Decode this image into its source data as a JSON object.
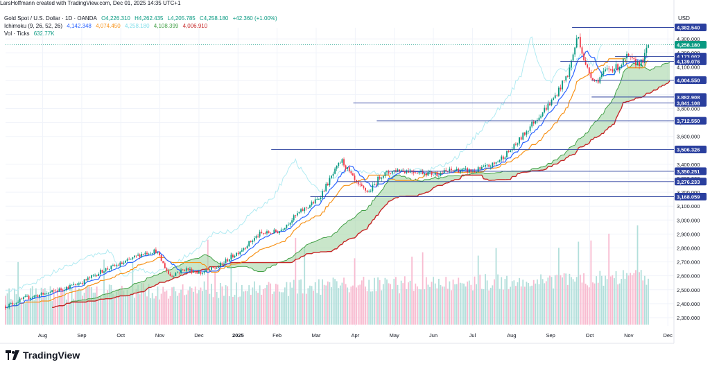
{
  "creator": "LarsHoffmann created with TradingView.com, Dec 01, 2025 14:35 UTC+1",
  "symbol": {
    "name": "Gold Spot / U.S. Dollar · 1D · OANDA",
    "open": "O4,226.310",
    "high": "H4,262.435",
    "low": "L4,205.785",
    "close": "C4,258.180",
    "change": "+42.360 (+1.00%)"
  },
  "ichimoku": {
    "label": "Ichimoku (9, 26, 52, 26)",
    "conversion": "4,142.348",
    "base": "4,074.450",
    "lagging": "4,258.180",
    "lead1": "4,108.399",
    "lead2": "4,006.910"
  },
  "volume": {
    "label": "Vol · Ticks",
    "value": "632.77K"
  },
  "currency": "USD",
  "footer": {
    "brand": "TradingView"
  },
  "colors": {
    "up": "#089981",
    "down": "#f23645",
    "conversion": "#2962ff",
    "base": "#f7931a",
    "lagging": "#b2ebf2",
    "lead1": "#43a047",
    "lead2": "#c62828",
    "cloud": "#a5d6a7",
    "hline": "#2a3f9e",
    "vol_up": "#b2dfdb",
    "vol_down": "#f8bbd0",
    "grid": "#f0f3fa",
    "text": "#131722"
  },
  "chart_data": {
    "type": "candlestick",
    "title": "Gold Spot / U.S. Dollar · 1D · OANDA",
    "x_range": [
      "Jul 2024",
      "Dec 2025"
    ],
    "x_ticks": [
      "Aug",
      "Sep",
      "Oct",
      "Nov",
      "Dec",
      "2025",
      "Feb",
      "Mar",
      "Apr",
      "May",
      "Jun",
      "Jul",
      "Aug",
      "Sep",
      "Oct",
      "Nov",
      "Dec"
    ],
    "ylim": [
      2240,
      4380
    ],
    "y_ticks": [
      2300,
      2400,
      2500,
      2600,
      2700,
      2800,
      2900,
      3000,
      3100,
      3200,
      3300,
      3400,
      3600,
      3700,
      3800,
      3900,
      4000,
      4100,
      4200,
      4300
    ],
    "y_tick_labels": [
      "2,300.000",
      "2,400.000",
      "2,500.000",
      "2,600.000",
      "2,700.000",
      "2,800.000",
      "2,900.000",
      "3,000.000",
      "3,100.000",
      "3,200.000",
      "3,300.000",
      "3,400.000",
      "3,600.000",
      "3,700.000",
      "3,800.000",
      "3,900.000",
      "4,000.000",
      "4,100.000",
      "4,200.000",
      "4,300.000"
    ],
    "price_key_points": [
      {
        "m": 0.0,
        "p": 2380
      },
      {
        "m": 0.5,
        "p": 2440
      },
      {
        "m": 1.0,
        "p": 2470
      },
      {
        "m": 1.5,
        "p": 2510
      },
      {
        "m": 2.0,
        "p": 2560
      },
      {
        "m": 2.5,
        "p": 2640
      },
      {
        "m": 3.0,
        "p": 2690
      },
      {
        "m": 3.5,
        "p": 2760
      },
      {
        "m": 3.85,
        "p": 2780
      },
      {
        "m": 4.2,
        "p": 2600
      },
      {
        "m": 4.6,
        "p": 2650
      },
      {
        "m": 5.0,
        "p": 2620
      },
      {
        "m": 5.4,
        "p": 2660
      },
      {
        "m": 6.0,
        "p": 2780
      },
      {
        "m": 6.5,
        "p": 2900
      },
      {
        "m": 7.0,
        "p": 2920
      },
      {
        "m": 7.5,
        "p": 3050
      },
      {
        "m": 8.0,
        "p": 3150
      },
      {
        "m": 8.6,
        "p": 3430
      },
      {
        "m": 9.0,
        "p": 3250
      },
      {
        "m": 9.3,
        "p": 3200
      },
      {
        "m": 9.6,
        "p": 3320
      },
      {
        "m": 10.0,
        "p": 3360
      },
      {
        "m": 10.5,
        "p": 3350
      },
      {
        "m": 11.0,
        "p": 3330
      },
      {
        "m": 11.5,
        "p": 3360
      },
      {
        "m": 12.0,
        "p": 3350
      },
      {
        "m": 12.5,
        "p": 3400
      },
      {
        "m": 13.0,
        "p": 3520
      },
      {
        "m": 13.5,
        "p": 3700
      },
      {
        "m": 14.0,
        "p": 3860
      },
      {
        "m": 14.4,
        "p": 4050
      },
      {
        "m": 14.65,
        "p": 4330
      },
      {
        "m": 14.85,
        "p": 4100
      },
      {
        "m": 15.1,
        "p": 3990
      },
      {
        "m": 15.4,
        "p": 4080
      },
      {
        "m": 15.7,
        "p": 4100
      },
      {
        "m": 15.9,
        "p": 4170
      },
      {
        "m": 16.1,
        "p": 4130
      },
      {
        "m": 16.3,
        "p": 4130
      },
      {
        "m": 16.45,
        "p": 4258
      }
    ],
    "price_levels": [
      {
        "label": "4,382.540",
        "price": 4382.54,
        "start_m": 14.5
      },
      {
        "label": "4,173.002",
        "price": 4173.002,
        "start_m": 15.6
      },
      {
        "label": "4,139.076",
        "price": 4139.076,
        "start_m": 14.2
      },
      {
        "label": "4,004.550",
        "price": 4004.55,
        "start_m": 15.0
      },
      {
        "label": "3,882.908",
        "price": 3882.908,
        "start_m": 15.0
      },
      {
        "label": "3,841.108",
        "price": 3841.108,
        "start_m": 8.9
      },
      {
        "label": "3,712.550",
        "price": 3712.55,
        "start_m": 9.5
      },
      {
        "label": "3,506.326",
        "price": 3506.326,
        "start_m": 6.8
      },
      {
        "label": "3,350.251",
        "price": 3350.251,
        "start_m": 9.8
      },
      {
        "label": "3,276.233",
        "price": 3276.233,
        "start_m": 8.5
      },
      {
        "label": "3,168.059",
        "price": 3168.059,
        "start_m": 7.8
      }
    ],
    "current_price": {
      "label": "4,258.180",
      "price": 4258.18
    }
  }
}
